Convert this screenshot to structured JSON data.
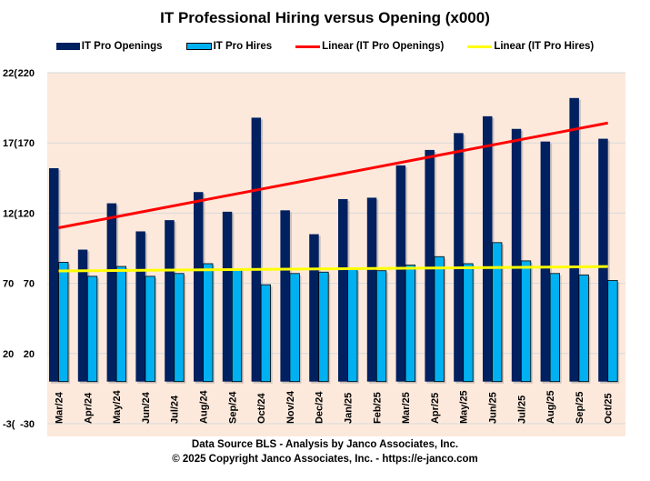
{
  "chart_data": {
    "type": "bar",
    "title": "IT Professional Hiring versus Opening (x000)",
    "categories": [
      "Mar/24",
      "Apr/24",
      "May/24",
      "Jun/24",
      "Jul/24",
      "Aug/24",
      "Sep/24",
      "Oct/24",
      "Nov/24",
      "Dec/24",
      "Jan/25",
      "Feb/25",
      "Mar/25",
      "Apr/25",
      "May/25",
      "Jun/25",
      "Jul/25",
      "Aug/25",
      "Sep/25",
      "Oct/25"
    ],
    "series": [
      {
        "name": "IT Pro Openings",
        "color": "#002060",
        "values": [
          152,
          94,
          127,
          107,
          115,
          135,
          121,
          188,
          122,
          105,
          130,
          131,
          154,
          165,
          177,
          189,
          180,
          171,
          202,
          173
        ]
      },
      {
        "name": "IT Pro Hires",
        "color": "#00B0F0",
        "values": [
          85,
          75,
          82,
          75,
          77,
          84,
          80,
          69,
          77,
          78,
          80,
          79,
          83,
          89,
          84,
          99,
          86,
          77,
          76,
          72
        ]
      }
    ],
    "trendlines": [
      {
        "name": "Linear (IT Pro Openings)",
        "color": "#FF0000",
        "of": "IT Pro Openings"
      },
      {
        "name": "Linear (IT Pro Hires)",
        "color": "#FFFF00",
        "of": "IT Pro Hires"
      }
    ],
    "ylim": [
      -30,
      220
    ],
    "yticks": [
      "220",
      "170",
      "120",
      "70",
      "20",
      "-30"
    ],
    "grid": true,
    "legend_position": "top",
    "plot_background": "#FCE9DC"
  },
  "footer": {
    "source": "Data Source BLS - Analysis  by Janco Associates,  Inc.",
    "copyright": "© 2025 Copyright Janco Associates, Inc. - https://e-janco.com"
  }
}
